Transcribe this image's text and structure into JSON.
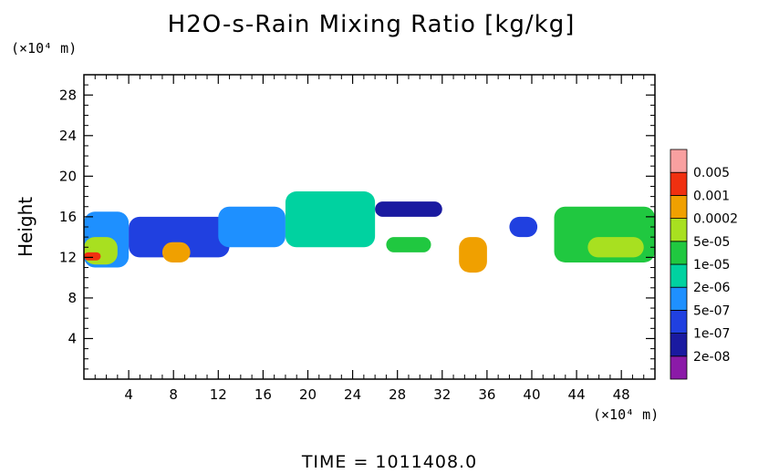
{
  "chart_data": {
    "type": "heatmap",
    "title": "H2O-s-Rain Mixing Ratio [kg/kg]",
    "ylabel": "Height",
    "x_unit": "(×10⁴ m)",
    "y_unit": "(×10⁴ m)",
    "xlim": [
      0,
      51
    ],
    "ylim": [
      0,
      30
    ],
    "x_ticks": [
      4,
      8,
      12,
      16,
      20,
      24,
      28,
      32,
      36,
      40,
      44,
      48
    ],
    "y_ticks": [
      4,
      8,
      12,
      16,
      20,
      24,
      28
    ],
    "legend_placement": "right",
    "colorbar": {
      "levels": [
        "2e-08",
        "1e-07",
        "5e-07",
        "2e-06",
        "1e-05",
        "5e-05",
        "0.0002",
        "0.001",
        "0.005"
      ],
      "colors": [
        "#8b1aa8",
        "#1a1aa0",
        "#2040e0",
        "#1e90ff",
        "#00d2a0",
        "#20c840",
        "#a8e020",
        "#f0a000",
        "#f03010",
        "#f8a0a0"
      ]
    },
    "cells": [
      {
        "x": [
          0,
          4
        ],
        "y": [
          11,
          16.5
        ],
        "level": 3
      },
      {
        "x": [
          0,
          3
        ],
        "y": [
          11.3,
          14
        ],
        "level": 6
      },
      {
        "x": [
          0,
          1.5
        ],
        "y": [
          11.7,
          12.5
        ],
        "level": 8
      },
      {
        "x": [
          4,
          13
        ],
        "y": [
          12,
          16
        ],
        "level": 2
      },
      {
        "x": [
          7,
          9.5
        ],
        "y": [
          11.5,
          13.5
        ],
        "level": 7
      },
      {
        "x": [
          12,
          18
        ],
        "y": [
          13,
          17
        ],
        "level": 3
      },
      {
        "x": [
          18,
          26
        ],
        "y": [
          13,
          18.5
        ],
        "level": 4
      },
      {
        "x": [
          26,
          32
        ],
        "y": [
          16,
          17.5
        ],
        "level": 1
      },
      {
        "x": [
          27,
          31
        ],
        "y": [
          12.5,
          14
        ],
        "level": 5
      },
      {
        "x": [
          33.5,
          36
        ],
        "y": [
          10.5,
          14
        ],
        "level": 7
      },
      {
        "x": [
          38,
          40.5
        ],
        "y": [
          14,
          16
        ],
        "level": 2
      },
      {
        "x": [
          42,
          51
        ],
        "y": [
          11.5,
          17
        ],
        "level": 5
      },
      {
        "x": [
          45,
          50
        ],
        "y": [
          12,
          14
        ],
        "level": 6
      }
    ]
  },
  "footer": {
    "time_label": "TIME = 1011408.0"
  }
}
